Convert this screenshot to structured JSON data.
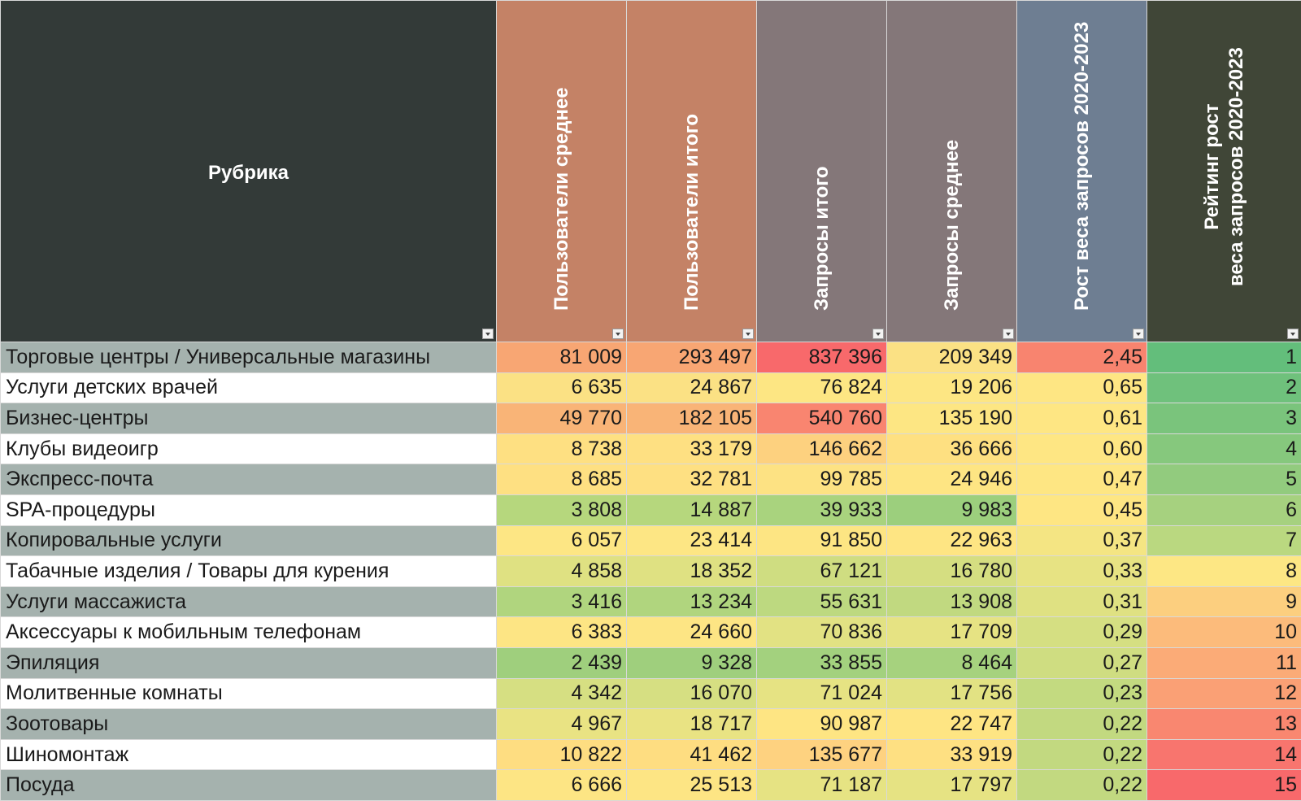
{
  "header": {
    "rubric": "Рубрика",
    "users_avg": "Пользователи среднее",
    "users_total": "Пользователи итого",
    "requests_total": "Запросы итого",
    "requests_avg": "Запросы среднее",
    "growth": "Рост веса запросов 2020-2023",
    "rank": "Рейтинг рост\nвеса запросов 2020-2023"
  },
  "rows": [
    {
      "name": "Торговые центры / Универсальные магазины",
      "users_avg": "81 009",
      "users_total": "293 497",
      "requests_total": "837 396",
      "requests_avg": "209 349",
      "growth": "2,45",
      "rank": "1"
    },
    {
      "name": "Услуги детских врачей",
      "users_avg": "6 635",
      "users_total": "24 867",
      "requests_total": "76 824",
      "requests_avg": "19 206",
      "growth": "0,65",
      "rank": "2"
    },
    {
      "name": "Бизнес-центры",
      "users_avg": "49 770",
      "users_total": "182 105",
      "requests_total": "540 760",
      "requests_avg": "135 190",
      "growth": "0,61",
      "rank": "3"
    },
    {
      "name": "Клубы видеоигр",
      "users_avg": "8 738",
      "users_total": "33 179",
      "requests_total": "146 662",
      "requests_avg": "36 666",
      "growth": "0,60",
      "rank": "4"
    },
    {
      "name": "Экспресс-почта",
      "users_avg": "8 685",
      "users_total": "32 781",
      "requests_total": "99 785",
      "requests_avg": "24 946",
      "growth": "0,47",
      "rank": "5"
    },
    {
      "name": "SPA-процедуры",
      "users_avg": "3 808",
      "users_total": "14 887",
      "requests_total": "39 933",
      "requests_avg": "9 983",
      "growth": "0,45",
      "rank": "6"
    },
    {
      "name": "Копировальные услуги",
      "users_avg": "6 057",
      "users_total": "23 414",
      "requests_total": "91 850",
      "requests_avg": "22 963",
      "growth": "0,37",
      "rank": "7"
    },
    {
      "name": "Табачные изделия / Товары для курения",
      "users_avg": "4 858",
      "users_total": "18 352",
      "requests_total": "67 121",
      "requests_avg": "16 780",
      "growth": "0,33",
      "rank": "8"
    },
    {
      "name": "Услуги массажиста",
      "users_avg": "3 416",
      "users_total": "13 234",
      "requests_total": "55 631",
      "requests_avg": "13 908",
      "growth": "0,31",
      "rank": "9"
    },
    {
      "name": "Аксессуары к мобильным телефонам",
      "users_avg": "6 383",
      "users_total": "24 660",
      "requests_total": "70 836",
      "requests_avg": "17 709",
      "growth": "0,29",
      "rank": "10"
    },
    {
      "name": "Эпиляция",
      "users_avg": "2 439",
      "users_total": "9 328",
      "requests_total": "33 855",
      "requests_avg": "8 464",
      "growth": "0,27",
      "rank": "11"
    },
    {
      "name": "Молитвенные комнаты",
      "users_avg": "4 342",
      "users_total": "16 070",
      "requests_total": "71 024",
      "requests_avg": "17 756",
      "growth": "0,23",
      "rank": "12"
    },
    {
      "name": "Зоотовары",
      "users_avg": "4 967",
      "users_total": "18 717",
      "requests_total": "90 987",
      "requests_avg": "22 747",
      "growth": "0,22",
      "rank": "13"
    },
    {
      "name": "Шиномонтаж",
      "users_avg": "10 822",
      "users_total": "41 462",
      "requests_total": "135 677",
      "requests_avg": "33 919",
      "growth": "0,22",
      "rank": "14"
    },
    {
      "name": "Посуда",
      "users_avg": "6 666",
      "users_total": "25 513",
      "requests_total": "71 187",
      "requests_avg": "17 797",
      "growth": "0,22",
      "rank": "15"
    }
  ],
  "cell_colors": {
    "users_avg": [
      "#f8a673",
      "#fbe184",
      "#f9b477",
      "#fee082",
      "#fee082",
      "#b6d77d",
      "#fde684",
      "#dfe182",
      "#b0d57e",
      "#fde584",
      "#9fcf7d",
      "#d6df82",
      "#e9e383",
      "#fedd81",
      "#fde584"
    ],
    "users_total": [
      "#f8a673",
      "#fbe184",
      "#f9b477",
      "#fee082",
      "#fee082",
      "#b6d77d",
      "#fde684",
      "#dfe182",
      "#b0d57e",
      "#fde584",
      "#9fcf7d",
      "#d6df82",
      "#e9e383",
      "#fedd81",
      "#fde584"
    ],
    "requests_total": [
      "#f8696b",
      "#fde683",
      "#f98570",
      "#fdd17f",
      "#fde283",
      "#a9d37e",
      "#fde583",
      "#cfdd81",
      "#bdd980",
      "#e2e283",
      "#a3d17e",
      "#e6e383",
      "#fee583",
      "#fed280",
      "#e6e383"
    ],
    "requests_avg": [
      "#fbe184",
      "#fde683",
      "#fde683",
      "#fee081",
      "#fee583",
      "#9ccf7d",
      "#fee583",
      "#d5de81",
      "#c1d980",
      "#e6e383",
      "#a6d27e",
      "#e2e283",
      "#fee583",
      "#fee082",
      "#e6e383"
    ],
    "growth": [
      "#f8846f",
      "#fee683",
      "#fee683",
      "#fee683",
      "#fee683",
      "#fee683",
      "#f4e583",
      "#e7e383",
      "#dfe182",
      "#d5df82",
      "#cfdd81",
      "#c3da80",
      "#c2d980",
      "#c2d980",
      "#c2d980"
    ],
    "rank": [
      "#63be7b",
      "#6fc17c",
      "#7ac47c",
      "#86c87d",
      "#92cb7e",
      "#a6d17f",
      "#bad880",
      "#fde784",
      "#fccf7f",
      "#fcbb7b",
      "#fbab77",
      "#faa075",
      "#f98770",
      "#f8756e",
      "#f8696b"
    ]
  }
}
